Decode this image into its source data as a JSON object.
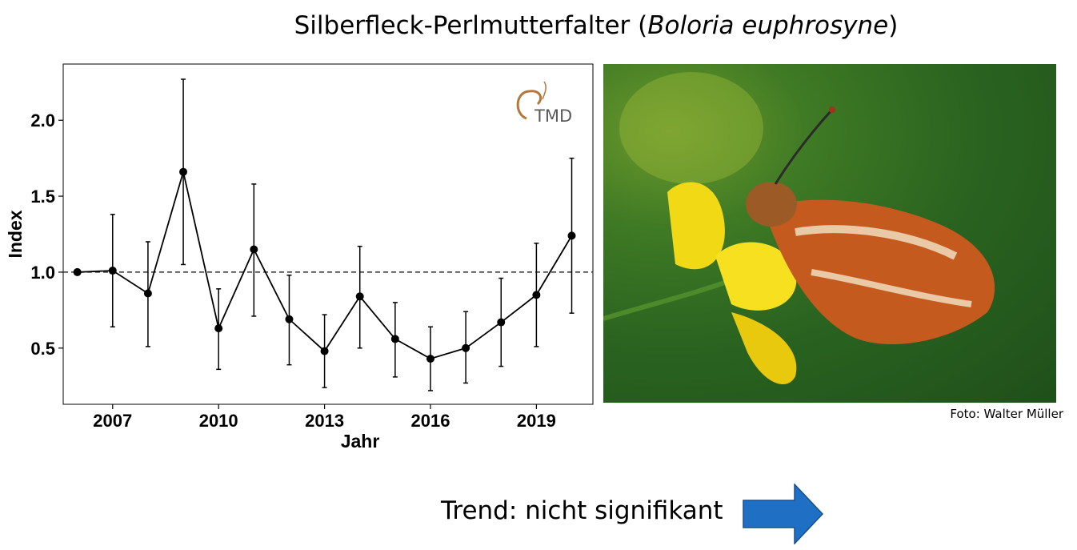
{
  "header": {
    "title_prefix": "Silberfleck-Perlmutterfalter (",
    "title_species": "Boloria euphrosyne",
    "title_suffix": ")"
  },
  "logo": {
    "text": "TMD",
    "colors": {
      "accent": "#b5773a",
      "text_dark": "#5a5a5a"
    }
  },
  "photo": {
    "credit": "Foto: Walter Müller"
  },
  "trend": {
    "label": "Trend: nicht signifikant",
    "arrow_color": "#1f6fc5",
    "arrow_stroke": "#1a4f8c"
  },
  "chart_data": {
    "type": "line",
    "xlabel": "Jahr",
    "ylabel": "Index",
    "xlim": [
      2005.6,
      2020.6
    ],
    "ylim": [
      0.13,
      2.37
    ],
    "x_ticks": [
      2007,
      2010,
      2013,
      2016,
      2019
    ],
    "y_ticks": [
      0.5,
      1.0,
      1.5,
      2.0
    ],
    "y_tick_labels": [
      "0.5",
      "1.0",
      "1.5",
      "2.0"
    ],
    "reference_line": {
      "y": 1.0,
      "style": "dashed"
    },
    "grid": false,
    "x": [
      2006,
      2007,
      2008,
      2009,
      2010,
      2011,
      2012,
      2013,
      2014,
      2015,
      2016,
      2017,
      2018,
      2019,
      2020
    ],
    "values": [
      1.0,
      1.01,
      0.86,
      1.66,
      0.63,
      1.15,
      0.69,
      0.48,
      0.84,
      0.56,
      0.43,
      0.5,
      0.67,
      0.85,
      1.24
    ],
    "lower": [
      1.0,
      0.64,
      0.51,
      1.05,
      0.36,
      0.71,
      0.39,
      0.24,
      0.5,
      0.31,
      0.22,
      0.27,
      0.38,
      0.51,
      0.73
    ],
    "upper": [
      1.0,
      1.38,
      1.2,
      2.27,
      0.89,
      1.58,
      0.98,
      0.72,
      1.17,
      0.8,
      0.64,
      0.74,
      0.96,
      1.19,
      1.75
    ]
  }
}
